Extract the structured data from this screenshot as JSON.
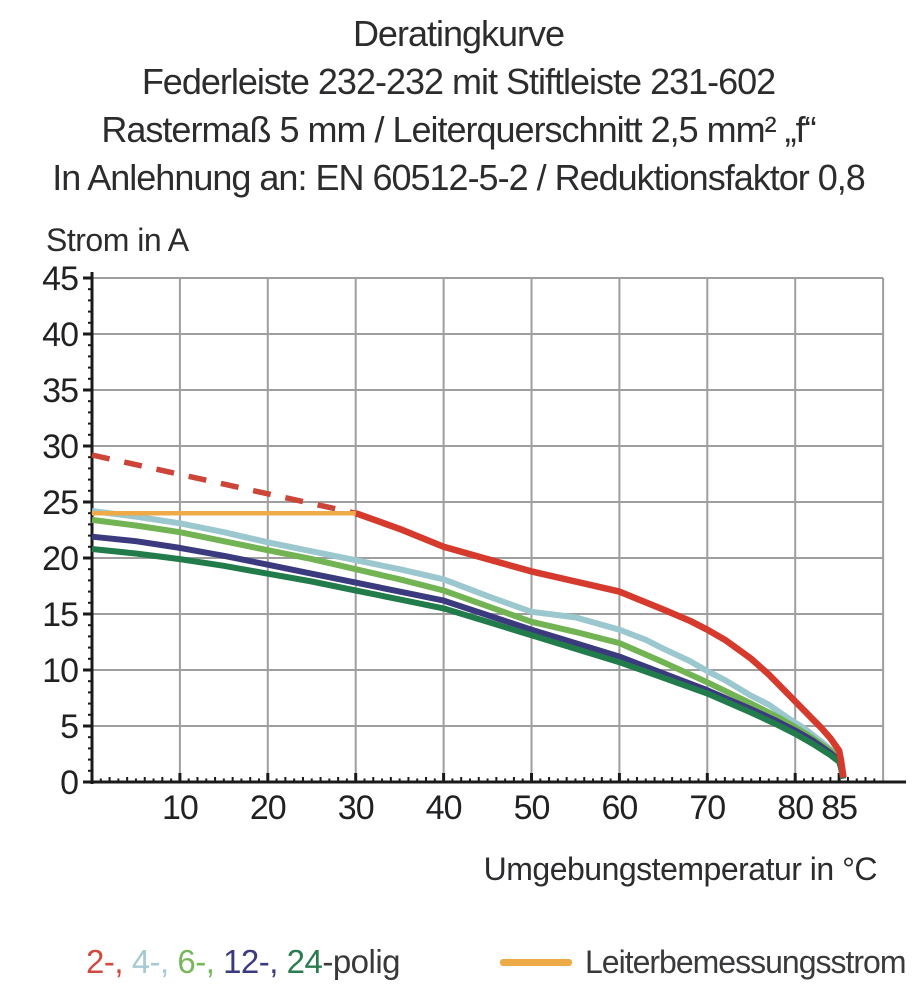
{
  "header": {
    "line1": "Deratingkurve",
    "line2": "Federleiste 232-232 mit Stiftleiste 231-602",
    "line3": "Rastermaß 5 mm / Leiterquerschnitt 2,5 mm² „f“",
    "line4": "In Anlehnung an: EN 60512-5-2 / Reduktionsfaktor 0,8"
  },
  "colors": {
    "red": "#d53a2d",
    "red_dashed": "#cd4438",
    "cyan": "#9bc7ce",
    "light_green": "#72b353",
    "navy": "#3b3a7f",
    "dark_green": "#217b4a",
    "orange": "#edaa47",
    "grid": "#9e9e9e",
    "axis": "#1a1a1a",
    "text": "#2c2c2e"
  },
  "legend": {
    "poles": {
      "segments": [
        {
          "text": "2-, ",
          "color": "#d04a3e"
        },
        {
          "text": "4-, ",
          "color": "#a5cbd2"
        },
        {
          "text": "6-, ",
          "color": "#78b65a"
        },
        {
          "text": "12-, ",
          "color": "#3b3a7f"
        },
        {
          "text": "24",
          "color": "#2a7c50"
        },
        {
          "text": "-polig",
          "color": "#39393b"
        }
      ]
    },
    "rated": {
      "label": "Leiterbemessungsstrom",
      "color": "#edaa47"
    }
  },
  "chart_data": {
    "type": "line",
    "title": "Deratingkurve",
    "xlabel": "Umgebungstemperatur in °C",
    "ylabel": "Strom in A",
    "xlim": [
      0,
      90
    ],
    "ylim": [
      0,
      45
    ],
    "x_tick_labels": [
      10,
      20,
      30,
      40,
      50,
      60,
      70,
      80,
      85
    ],
    "y_tick_labels": [
      0,
      5,
      10,
      15,
      20,
      25,
      30,
      35,
      40,
      45
    ],
    "grid": {
      "x_step": 10,
      "y_step": 5,
      "on": true
    },
    "legend_position": "bottom",
    "series": [
      {
        "id": "derating-2polig-dashed",
        "name": "2-polig (oberhalb Leiterbemessungsstrom, gestrichelt)",
        "color": "#cd4438",
        "width": 5.5,
        "dash": "18 15",
        "points": [
          [
            0,
            29.2
          ],
          [
            30,
            24.0
          ]
        ]
      },
      {
        "id": "derating-4polig",
        "name": "4-polig",
        "color": "#9bc7ce",
        "width": 6,
        "points": [
          [
            0,
            24.2
          ],
          [
            5,
            23.7
          ],
          [
            10,
            23.1
          ],
          [
            15,
            22.3
          ],
          [
            20,
            21.4
          ],
          [
            25,
            20.6
          ],
          [
            30,
            19.8
          ],
          [
            35,
            19.0
          ],
          [
            40,
            18.1
          ],
          [
            45,
            16.6
          ],
          [
            50,
            15.2
          ],
          [
            53,
            14.9
          ],
          [
            55,
            14.7
          ],
          [
            60,
            13.6
          ],
          [
            63,
            12.7
          ],
          [
            65,
            11.9
          ],
          [
            68,
            10.8
          ],
          [
            70,
            9.9
          ],
          [
            72,
            9.1
          ],
          [
            75,
            7.7
          ],
          [
            77,
            6.9
          ],
          [
            79,
            5.8
          ],
          [
            80,
            5.3
          ],
          [
            81,
            4.8
          ],
          [
            82,
            4.2
          ],
          [
            83,
            3.6
          ],
          [
            84,
            2.9
          ],
          [
            85,
            2.2
          ],
          [
            85.2,
            1.6
          ],
          [
            85.45,
            0.3
          ]
        ]
      },
      {
        "id": "derating-6polig",
        "name": "6-polig",
        "color": "#72b353",
        "width": 6,
        "points": [
          [
            0,
            23.4
          ],
          [
            5,
            22.9
          ],
          [
            10,
            22.3
          ],
          [
            15,
            21.5
          ],
          [
            20,
            20.7
          ],
          [
            25,
            19.9
          ],
          [
            30,
            19.0
          ],
          [
            35,
            18.1
          ],
          [
            40,
            17.1
          ],
          [
            45,
            15.7
          ],
          [
            50,
            14.3
          ],
          [
            55,
            13.4
          ],
          [
            60,
            12.4
          ],
          [
            65,
            10.7
          ],
          [
            70,
            8.9
          ],
          [
            75,
            7.0
          ],
          [
            78,
            5.8
          ],
          [
            80,
            4.9
          ],
          [
            82,
            3.9
          ],
          [
            84,
            2.8
          ],
          [
            85,
            2.1
          ],
          [
            85.2,
            1.5
          ],
          [
            85.45,
            0.3
          ]
        ]
      },
      {
        "id": "derating-12polig",
        "name": "12-polig",
        "color": "#3b3a7f",
        "width": 6,
        "points": [
          [
            0,
            21.9
          ],
          [
            5,
            21.5
          ],
          [
            10,
            20.9
          ],
          [
            15,
            20.2
          ],
          [
            20,
            19.4
          ],
          [
            25,
            18.6
          ],
          [
            30,
            17.8
          ],
          [
            35,
            17.0
          ],
          [
            40,
            16.2
          ],
          [
            45,
            14.9
          ],
          [
            50,
            13.6
          ],
          [
            55,
            12.4
          ],
          [
            60,
            11.2
          ],
          [
            65,
            9.7
          ],
          [
            70,
            8.2
          ],
          [
            75,
            6.5
          ],
          [
            78,
            5.4
          ],
          [
            80,
            4.6
          ],
          [
            82,
            3.7
          ],
          [
            84,
            2.6
          ],
          [
            85,
            1.9
          ],
          [
            85.2,
            1.4
          ],
          [
            85.45,
            0.3
          ]
        ]
      },
      {
        "id": "derating-24polig",
        "name": "24-polig",
        "color": "#217b4a",
        "width": 6,
        "points": [
          [
            0,
            20.8
          ],
          [
            5,
            20.4
          ],
          [
            10,
            19.9
          ],
          [
            15,
            19.3
          ],
          [
            20,
            18.6
          ],
          [
            25,
            17.9
          ],
          [
            30,
            17.1
          ],
          [
            35,
            16.3
          ],
          [
            40,
            15.5
          ],
          [
            45,
            14.3
          ],
          [
            50,
            13.1
          ],
          [
            55,
            11.9
          ],
          [
            60,
            10.7
          ],
          [
            65,
            9.3
          ],
          [
            70,
            7.9
          ],
          [
            75,
            6.2
          ],
          [
            78,
            5.1
          ],
          [
            80,
            4.3
          ],
          [
            82,
            3.4
          ],
          [
            84,
            2.4
          ],
          [
            85,
            1.8
          ],
          [
            85.2,
            1.3
          ],
          [
            85.45,
            0.3
          ]
        ]
      },
      {
        "id": "derating-2polig",
        "name": "2-polig",
        "color": "#d53a2d",
        "width": 6.5,
        "points": [
          [
            30,
            24.0
          ],
          [
            35,
            22.6
          ],
          [
            40,
            21.0
          ],
          [
            45,
            19.9
          ],
          [
            50,
            18.8
          ],
          [
            55,
            17.9
          ],
          [
            60,
            17.0
          ],
          [
            65,
            15.4
          ],
          [
            68,
            14.4
          ],
          [
            70,
            13.6
          ],
          [
            72,
            12.7
          ],
          [
            75,
            11.0
          ],
          [
            77,
            9.6
          ],
          [
            79,
            8.0
          ],
          [
            80,
            7.2
          ],
          [
            81,
            6.4
          ],
          [
            82,
            5.6
          ],
          [
            83,
            4.8
          ],
          [
            84,
            3.9
          ],
          [
            85,
            2.8
          ],
          [
            85.2,
            2.0
          ],
          [
            85.5,
            0.4
          ]
        ]
      },
      {
        "id": "leiterbemessungsstrom",
        "name": "Leiterbemessungsstrom",
        "color": "#edaa47",
        "width": 4.5,
        "points": [
          [
            0,
            24.0
          ],
          [
            30,
            24.0
          ]
        ]
      }
    ]
  }
}
